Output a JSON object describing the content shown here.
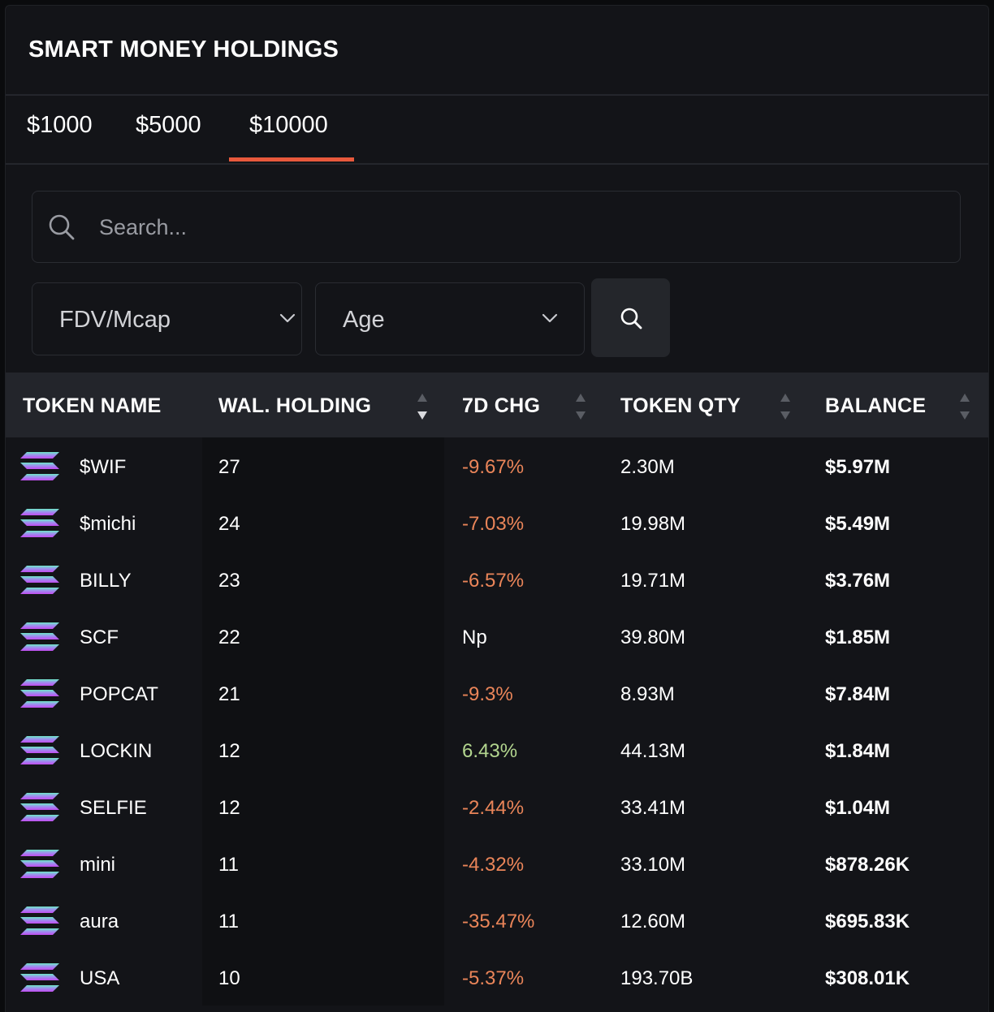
{
  "title": "SMART MONEY HOLDINGS",
  "tabs": [
    {
      "label": "$1000",
      "active": false
    },
    {
      "label": "$5000",
      "active": false
    },
    {
      "label": "$10000",
      "active": true
    }
  ],
  "accent_color": "#e8593c",
  "search": {
    "placeholder": "Search...",
    "value": ""
  },
  "filters": {
    "fdv": {
      "label": "FDV/Mcap"
    },
    "age": {
      "label": "Age"
    }
  },
  "table": {
    "headers": {
      "token_name": "TOKEN NAME",
      "wal_holding": "WAL. HOLDING",
      "chg_7d": "7D CHG",
      "token_qty": "TOKEN QTY",
      "balance": "BALANCE"
    },
    "sorted_by": "wal_holding",
    "sort_direction": "desc",
    "rows": [
      {
        "token": "$WIF",
        "wal": "27",
        "chg": "-9.67%",
        "chg_dir": "neg",
        "qty": "2.30M",
        "balance": "$5.97M"
      },
      {
        "token": "$michi",
        "wal": "24",
        "chg": "-7.03%",
        "chg_dir": "neg",
        "qty": "19.98M",
        "balance": "$5.49M"
      },
      {
        "token": "BILLY",
        "wal": "23",
        "chg": "-6.57%",
        "chg_dir": "neg",
        "qty": "19.71M",
        "balance": "$3.76M"
      },
      {
        "token": "SCF",
        "wal": "22",
        "chg": "Np",
        "chg_dir": "none",
        "qty": "39.80M",
        "balance": "$1.85M"
      },
      {
        "token": "POPCAT",
        "wal": "21",
        "chg": "-9.3%",
        "chg_dir": "neg",
        "qty": "8.93M",
        "balance": "$7.84M"
      },
      {
        "token": "LOCKIN",
        "wal": "12",
        "chg": "6.43%",
        "chg_dir": "pos",
        "qty": "44.13M",
        "balance": "$1.84M"
      },
      {
        "token": "SELFIE",
        "wal": "12",
        "chg": "-2.44%",
        "chg_dir": "neg",
        "qty": "33.41M",
        "balance": "$1.04M"
      },
      {
        "token": "mini",
        "wal": "11",
        "chg": "-4.32%",
        "chg_dir": "neg",
        "qty": "33.10M",
        "balance": "$878.26K"
      },
      {
        "token": "aura",
        "wal": "11",
        "chg": "-35.47%",
        "chg_dir": "neg",
        "qty": "12.60M",
        "balance": "$695.83K"
      },
      {
        "token": "USA",
        "wal": "10",
        "chg": "-5.37%",
        "chg_dir": "neg",
        "qty": "193.70B",
        "balance": "$308.01K"
      }
    ],
    "row_icon": "solana-logo-icon"
  }
}
